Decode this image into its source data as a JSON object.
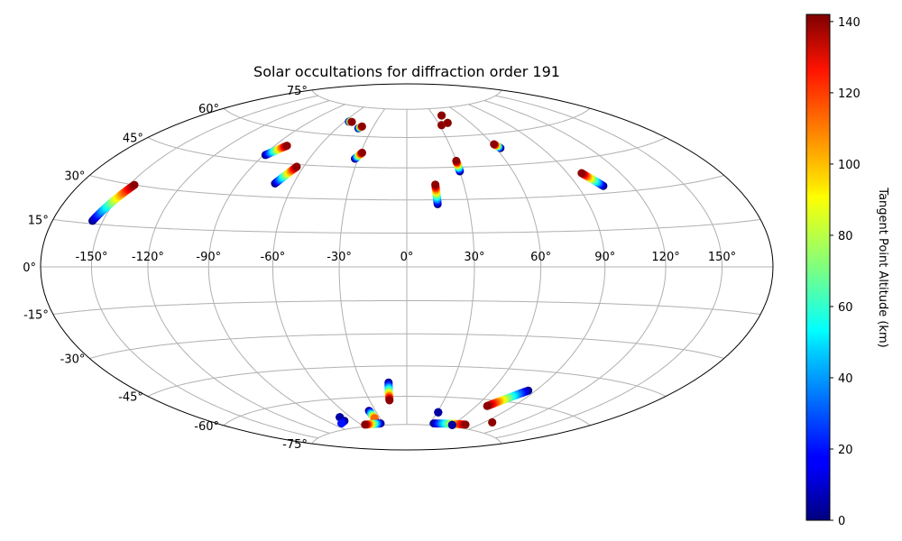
{
  "chart_data": {
    "type": "scatter",
    "projection": "hammer",
    "title": "Solar occultations for diffraction order 191",
    "grid": true,
    "longitude_ticks": [
      -150,
      -120,
      -90,
      -60,
      -30,
      0,
      30,
      60,
      90,
      120,
      150
    ],
    "longitude_tick_labels": [
      "-150°",
      "-120°",
      "-90°",
      "-60°",
      "-30°",
      "0°",
      "30°",
      "60°",
      "90°",
      "120°",
      "150°"
    ],
    "latitude_ticks": [
      -75,
      -60,
      -45,
      -30,
      -15,
      0,
      15,
      30,
      45,
      60,
      75
    ],
    "latitude_tick_labels": [
      "-75°",
      "-60°",
      "-45°",
      "-30°",
      "-15°",
      "0°",
      "15°",
      "30°",
      "45°",
      "60°",
      "75°"
    ],
    "colorbar": {
      "label": "Tangent Point Altitude (km)",
      "range": [
        0,
        142
      ],
      "ticks": [
        0,
        20,
        40,
        60,
        80,
        100,
        120,
        140
      ],
      "tick_labels": [
        "0",
        "20",
        "40",
        "60",
        "80",
        "100",
        "120",
        "140"
      ],
      "colormap": "jet",
      "position": "right"
    },
    "occultations": [
      {
        "lon_start": -156,
        "lat_start": 16,
        "alt_start": 0,
        "lon_end": -147,
        "lat_end": 30,
        "alt_end": 140
      },
      {
        "lon_start": -89,
        "lat_start": 48,
        "alt_start": 0,
        "lon_end": -82,
        "lat_end": 53,
        "alt_end": 140
      },
      {
        "lon_start": -70,
        "lat_start": 36,
        "alt_start": 0,
        "lon_end": -64,
        "lat_end": 44,
        "alt_end": 140
      },
      {
        "lon_start": -56,
        "lat_start": 67,
        "alt_start": 0,
        "lon_end": -53,
        "lat_end": 67,
        "alt_end": 140
      },
      {
        "lon_start": -42,
        "lat_start": 64,
        "alt_start": 0,
        "lon_end": -40,
        "lat_end": 65,
        "alt_end": 140
      },
      {
        "lon_start": -32,
        "lat_start": 49,
        "alt_start": 0,
        "lon_end": -29,
        "lat_end": 52,
        "alt_end": 140
      },
      {
        "lon_start": 15,
        "lat_start": 28,
        "alt_start": 0,
        "lon_end": 15,
        "lat_end": 37,
        "alt_end": 140
      },
      {
        "lon_start": 30,
        "lat_start": 43,
        "alt_start": 0,
        "lon_end": 30,
        "lat_end": 48,
        "alt_end": 140
      },
      {
        "lon_start": 32,
        "lat_start": 66,
        "alt_start": 0,
        "lon_end": 32,
        "lat_end": 66,
        "alt_end": 140
      },
      {
        "lon_start": 39,
        "lat_start": 71,
        "alt_start": 0,
        "lon_end": 39,
        "lat_end": 71,
        "alt_end": 140
      },
      {
        "lon_start": 39,
        "lat_start": 67,
        "alt_start": 0,
        "lon_end": 39,
        "lat_end": 67,
        "alt_end": 140
      },
      {
        "lon_start": 63,
        "lat_start": 53,
        "alt_start": 0,
        "lon_end": 61,
        "lat_end": 55,
        "alt_end": 140
      },
      {
        "lon_start": 104,
        "lat_start": 33,
        "alt_start": 0,
        "lon_end": 98,
        "lat_end": 39,
        "alt_end": 140
      },
      {
        "lon_start": -12,
        "lat_start": -53,
        "alt_start": 0,
        "lon_end": -14,
        "lat_end": -62,
        "alt_end": 140
      },
      {
        "lon_start": 85,
        "lat_start": -54,
        "alt_start": 0,
        "lon_end": 69,
        "lat_end": -63,
        "alt_end": 140
      },
      {
        "lon_start": 31,
        "lat_start": -68,
        "alt_start": 0,
        "lon_end": 31,
        "lat_end": -68,
        "alt_end": 5
      },
      {
        "lon_start": -71,
        "lat_start": -69,
        "alt_start": 0,
        "lon_end": -71,
        "lat_end": -69,
        "alt_end": 5
      },
      {
        "lon_start": -72,
        "lat_start": -71,
        "alt_start": 0,
        "lon_end": -80,
        "lat_end": -72,
        "alt_end": 20
      },
      {
        "lon_start": -38,
        "lat_start": -72,
        "alt_start": 0,
        "lon_end": -38,
        "lat_end": -73,
        "alt_end": 10
      },
      {
        "lon_start": -36,
        "lat_start": -67,
        "alt_start": 0,
        "lon_end": -36,
        "lat_end": -71,
        "alt_end": 110
      },
      {
        "lon_start": -34,
        "lat_start": -74,
        "alt_start": 0,
        "lon_end": -55,
        "lat_end": -74,
        "alt_end": 140
      },
      {
        "lon_start": 35,
        "lat_start": -74,
        "alt_start": 0,
        "lon_end": 75,
        "lat_end": -73,
        "alt_end": 140
      },
      {
        "lon_start": 60,
        "lat_start": -74,
        "alt_start": 0,
        "lon_end": 60,
        "lat_end": -74,
        "alt_end": 5
      },
      {
        "lon_start": 98,
        "lat_start": -70,
        "alt_start": 0,
        "lon_end": 98,
        "lat_end": -70,
        "alt_end": 140
      }
    ]
  }
}
